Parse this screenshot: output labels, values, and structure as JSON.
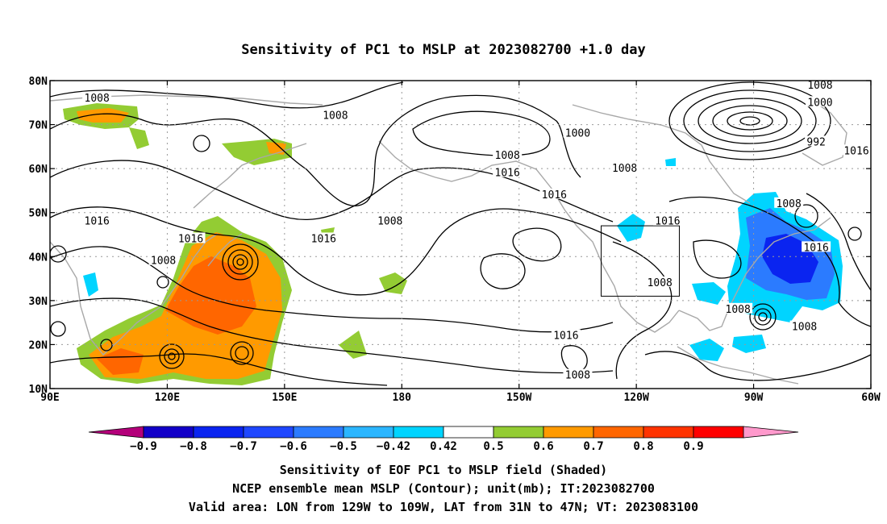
{
  "title": "Sensitivity of PC1 to MSLP at 2023082700 +1.0 day",
  "map": {
    "lon_range": [
      90,
      300
    ],
    "lat_range": [
      10,
      80
    ],
    "lat_ticks": [
      {
        "lat": 80,
        "label": "80N"
      },
      {
        "lat": 70,
        "label": "70N"
      },
      {
        "lat": 60,
        "label": "60N"
      },
      {
        "lat": 50,
        "label": "50N"
      },
      {
        "lat": 40,
        "label": "40N"
      },
      {
        "lat": 30,
        "label": "30N"
      },
      {
        "lat": 20,
        "label": "20N"
      },
      {
        "lat": 10,
        "label": "10N"
      }
    ],
    "lon_ticks": [
      {
        "lon": 90,
        "label": "90E"
      },
      {
        "lon": 120,
        "label": "120E"
      },
      {
        "lon": 150,
        "label": "150E"
      },
      {
        "lon": 180,
        "label": "180"
      },
      {
        "lon": 210,
        "label": "150W"
      },
      {
        "lon": 240,
        "label": "120W"
      },
      {
        "lon": 270,
        "label": "90W"
      },
      {
        "lon": 300,
        "label": "60W"
      }
    ],
    "grid": true,
    "valid_area_box": {
      "lon": [
        231,
        251
      ],
      "lat": [
        31,
        47
      ]
    },
    "contour_labels": [
      {
        "text": "1008",
        "lon": 102,
        "lat": 76
      },
      {
        "text": "1008",
        "lon": 163,
        "lat": 72
      },
      {
        "text": "1000",
        "lon": 225,
        "lat": 68
      },
      {
        "text": "1008",
        "lon": 207,
        "lat": 63
      },
      {
        "text": "1016",
        "lon": 207,
        "lat": 59
      },
      {
        "text": "1008",
        "lon": 237,
        "lat": 60
      },
      {
        "text": "1016",
        "lon": 219,
        "lat": 54
      },
      {
        "text": "1008",
        "lon": 177,
        "lat": 48
      },
      {
        "text": "1016",
        "lon": 102,
        "lat": 48
      },
      {
        "text": "1016",
        "lon": 126,
        "lat": 44
      },
      {
        "text": "1016",
        "lon": 160,
        "lat": 44
      },
      {
        "text": "1008",
        "lon": 119,
        "lat": 39
      },
      {
        "text": "1016",
        "lon": 248,
        "lat": 48
      },
      {
        "text": "1008",
        "lon": 246,
        "lat": 34
      },
      {
        "text": "1016",
        "lon": 222,
        "lat": 22
      },
      {
        "text": "1008",
        "lon": 225,
        "lat": 13
      },
      {
        "text": "1008",
        "lon": 287,
        "lat": 80
      },
      {
        "text": "1000",
        "lon": 287,
        "lat": 75
      },
      {
        "text": "992",
        "lon": 286,
        "lat": 66
      },
      {
        "text": "1016",
        "lon": 305,
        "lat": 64
      },
      {
        "text": "1008",
        "lon": 279,
        "lat": 52
      },
      {
        "text": "1016",
        "lon": 286,
        "lat": 42
      },
      {
        "text": "1008",
        "lon": 266,
        "lat": 28
      },
      {
        "text": "1008",
        "lon": 283,
        "lat": 24
      }
    ]
  },
  "colorbar": {
    "colors": [
      "#b4007a",
      "#1200c8",
      "#0a24f0",
      "#1f47ff",
      "#2b7bff",
      "#2bb6ff",
      "#00d4ff",
      "#ffffff",
      "#93cc33",
      "#ff9a00",
      "#ff6600",
      "#ff3300",
      "#ff0000",
      "#ff99cc"
    ],
    "labels": [
      "−0.9",
      "−0.8",
      "−0.7",
      "−0.6",
      "−0.5",
      "−0.42",
      "0.42",
      "0.5",
      "0.6",
      "0.7",
      "0.8",
      "0.9"
    ]
  },
  "captions": [
    "Sensitivity of EOF PC1 to MSLP field (Shaded)",
    "NCEP ensemble mean MSLP (Contour); unit(mb); IT:2023082700",
    "Valid area: LON from 129W to 109W, LAT from 31N to 47N; VT: 2023083100"
  ]
}
